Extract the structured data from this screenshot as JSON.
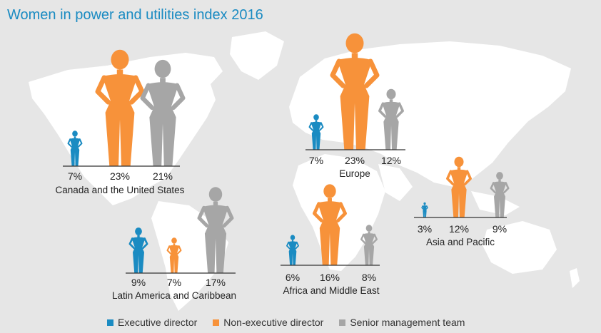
{
  "chart_data": {
    "type": "bar",
    "title": "Women in power and utilities index 2016",
    "value_suffix": "%",
    "series": [
      {
        "name": "Executive director",
        "color": "#1a8bc2"
      },
      {
        "name": "Non-executive director",
        "color": "#f7923a"
      },
      {
        "name": "Senior management team",
        "color": "#a6a6a6"
      }
    ],
    "regions": [
      {
        "name": "Canada and the United States",
        "values": [
          7,
          23,
          21
        ]
      },
      {
        "name": "Europe",
        "values": [
          7,
          23,
          12
        ]
      },
      {
        "name": "Latin America and Caribbean",
        "values": [
          9,
          7,
          17
        ]
      },
      {
        "name": "Africa and Middle East",
        "values": [
          6,
          16,
          8
        ]
      },
      {
        "name": "Asia and Pacific",
        "values": [
          3,
          12,
          9
        ]
      }
    ]
  }
}
